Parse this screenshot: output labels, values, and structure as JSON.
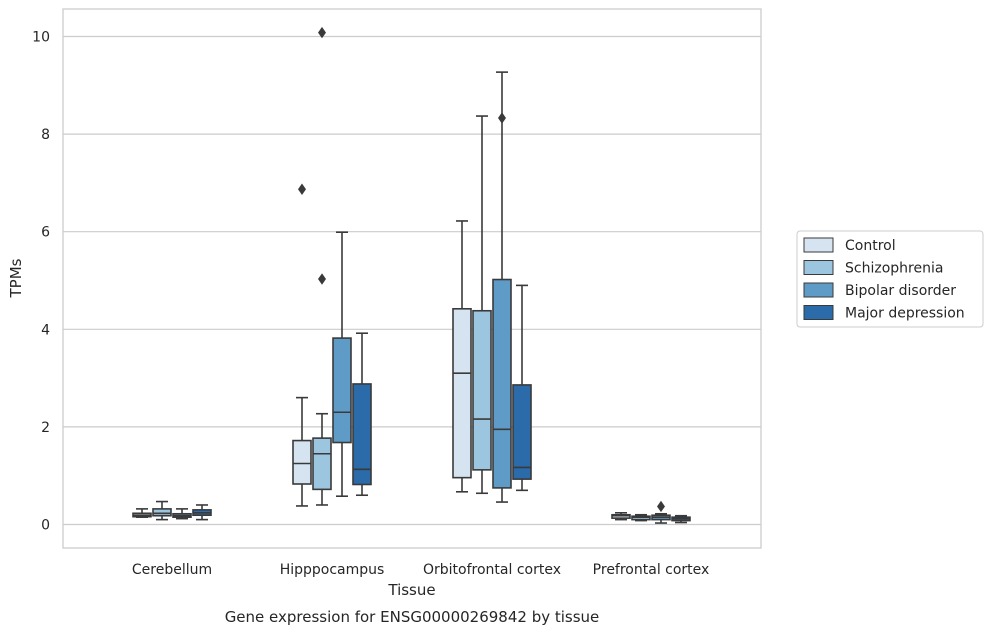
{
  "chart_data": {
    "type": "box",
    "xlabel": "Tissue",
    "ylabel": "TPMs",
    "caption": "Gene expression for ENSG00000269842 by tissue",
    "ylim": [
      -0.45,
      10.55
    ],
    "yticks": [
      "0",
      "2",
      "4",
      "6",
      "8",
      "10"
    ],
    "grid": "horizontal",
    "legend_position": "right",
    "categories": [
      "Cerebellum",
      "Hipppocampus",
      "Orbitofrontal cortex",
      "Prefrontal cortex"
    ],
    "series": [
      {
        "name": "Control",
        "color": "#d6e4f2",
        "boxes": [
          {
            "min": 0.15,
            "q1": 0.16,
            "median": 0.19,
            "q3": 0.23,
            "max": 0.32,
            "outliers": []
          },
          {
            "min": 0.38,
            "q1": 0.83,
            "median": 1.25,
            "q3": 1.72,
            "max": 2.6,
            "outliers": [
              6.87
            ]
          },
          {
            "min": 0.67,
            "q1": 0.96,
            "median": 3.1,
            "q3": 4.42,
            "max": 6.22,
            "outliers": []
          },
          {
            "min": 0.1,
            "q1": 0.13,
            "median": 0.18,
            "q3": 0.2,
            "max": 0.24,
            "outliers": []
          }
        ]
      },
      {
        "name": "Schizophrenia",
        "color": "#9cc5df",
        "boxes": [
          {
            "min": 0.1,
            "q1": 0.18,
            "median": 0.23,
            "q3": 0.32,
            "max": 0.47,
            "outliers": []
          },
          {
            "min": 0.4,
            "q1": 0.72,
            "median": 1.45,
            "q3": 1.77,
            "max": 2.27,
            "outliers": [
              5.03,
              10.08
            ]
          },
          {
            "min": 0.64,
            "q1": 1.12,
            "median": 2.16,
            "q3": 4.38,
            "max": 8.37,
            "outliers": []
          },
          {
            "min": 0.08,
            "q1": 0.1,
            "median": 0.15,
            "q3": 0.17,
            "max": 0.2,
            "outliers": []
          }
        ]
      },
      {
        "name": "Bipolar disorder",
        "color": "#5e9bc7",
        "boxes": [
          {
            "min": 0.12,
            "q1": 0.15,
            "median": 0.18,
            "q3": 0.22,
            "max": 0.32,
            "outliers": []
          },
          {
            "min": 0.58,
            "q1": 1.68,
            "median": 2.3,
            "q3": 3.82,
            "max": 5.99,
            "outliers": []
          },
          {
            "min": 0.46,
            "q1": 0.75,
            "median": 1.95,
            "q3": 5.02,
            "max": 9.27,
            "outliers": [
              8.33
            ]
          },
          {
            "min": 0.03,
            "q1": 0.1,
            "median": 0.15,
            "q3": 0.19,
            "max": 0.22,
            "outliers": [
              0.37
            ]
          }
        ]
      },
      {
        "name": "Major depression",
        "color": "#2b6ba9",
        "boxes": [
          {
            "min": 0.1,
            "q1": 0.19,
            "median": 0.24,
            "q3": 0.3,
            "max": 0.4,
            "outliers": []
          },
          {
            "min": 0.6,
            "q1": 0.82,
            "median": 1.13,
            "q3": 2.88,
            "max": 3.92,
            "outliers": []
          },
          {
            "min": 0.7,
            "q1": 0.93,
            "median": 1.17,
            "q3": 2.86,
            "max": 4.9,
            "outliers": []
          },
          {
            "min": 0.04,
            "q1": 0.08,
            "median": 0.12,
            "q3": 0.15,
            "max": 0.18,
            "outliers": []
          }
        ]
      }
    ]
  }
}
